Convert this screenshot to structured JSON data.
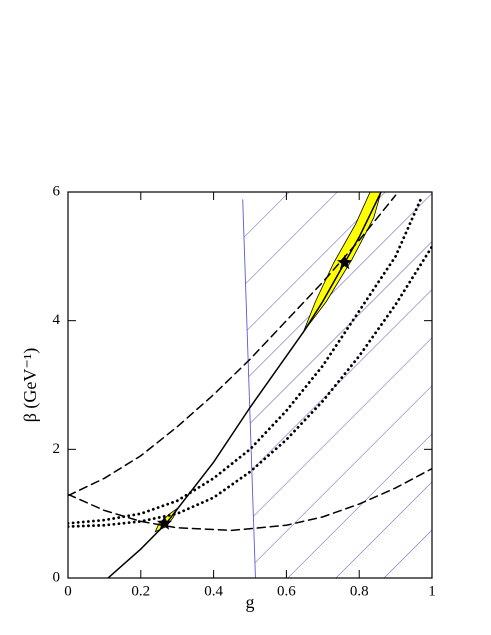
{
  "chart_data": {
    "type": "line",
    "x_label": "g",
    "y_label": "β (GeV⁻¹)",
    "xlim": [
      0,
      1
    ],
    "ylim": [
      0,
      6
    ],
    "xticks": [
      0,
      0.2,
      0.4,
      0.6,
      0.8,
      1
    ],
    "yticks": [
      0,
      2,
      4,
      6
    ],
    "regions": [
      {
        "fill": "hatch",
        "color": "#5a5ad8",
        "x": [
          0.48,
          0.515,
          1,
          1
        ],
        "y": [
          6,
          0,
          0,
          6
        ]
      },
      {
        "fill": "solid",
        "color": "#ffff00",
        "x": [
          0.24,
          0.25,
          0.28,
          0.3,
          0.29,
          0.27
        ],
        "y": [
          0.72,
          0.85,
          1.0,
          1.08,
          0.95,
          0.8
        ]
      },
      {
        "fill": "solid",
        "color": "#ffff00",
        "x": [
          0.645,
          0.68,
          0.73,
          0.79,
          0.83,
          0.86,
          0.84,
          0.78,
          0.71,
          0.65
        ],
        "y": [
          3.8,
          4.3,
          4.9,
          5.5,
          6.0,
          6.0,
          5.6,
          4.95,
          4.3,
          3.85
        ]
      }
    ],
    "series": [
      {
        "style": "thin",
        "color": "#5a5ad8",
        "x": [
          0.48,
          0.515
        ],
        "values": [
          5.88,
          0
        ]
      },
      {
        "style": "solid",
        "color": "#000000",
        "x": [
          0.11,
          0.2,
          0.27,
          0.4,
          0.5,
          0.6,
          0.65,
          0.7,
          0.76,
          0.8,
          0.86
        ],
        "values": [
          0,
          0.45,
          0.85,
          1.8,
          2.65,
          3.45,
          3.85,
          4.3,
          4.9,
          5.3,
          6
        ]
      },
      {
        "style": "dashed",
        "color": "#000000",
        "x": [
          0,
          0.1,
          0.2,
          0.3,
          0.4,
          0.5,
          0.6,
          0.7,
          0.8,
          0.9
        ],
        "values": [
          1.28,
          1.55,
          1.9,
          2.35,
          2.85,
          3.4,
          4.0,
          4.6,
          5.25,
          5.95
        ]
      },
      {
        "style": "dashed",
        "color": "#000000",
        "x": [
          0,
          0.1,
          0.2,
          0.3,
          0.45,
          0.6,
          0.7,
          0.8,
          0.9,
          1
        ],
        "values": [
          1.3,
          1.05,
          0.88,
          0.78,
          0.74,
          0.82,
          0.95,
          1.15,
          1.4,
          1.7
        ]
      },
      {
        "style": "dotted",
        "color": "#000000",
        "x": [
          0,
          0.1,
          0.2,
          0.3,
          0.4,
          0.5,
          0.6,
          0.7,
          0.8,
          0.9,
          0.97
        ],
        "values": [
          0.85,
          0.9,
          1.0,
          1.2,
          1.55,
          2.0,
          2.6,
          3.3,
          4.15,
          5.0,
          5.9
        ]
      },
      {
        "style": "dotted",
        "color": "#000000",
        "x": [
          0,
          0.1,
          0.2,
          0.3,
          0.4,
          0.5,
          0.6,
          0.7,
          0.8,
          0.9,
          1
        ],
        "values": [
          0.8,
          0.82,
          0.88,
          1.0,
          1.25,
          1.65,
          2.15,
          2.75,
          3.45,
          4.25,
          5.15
        ]
      },
      {
        "style": "star",
        "color": "#000000",
        "x": [
          0.265,
          0.76
        ],
        "values": [
          0.85,
          4.9
        ]
      }
    ]
  }
}
